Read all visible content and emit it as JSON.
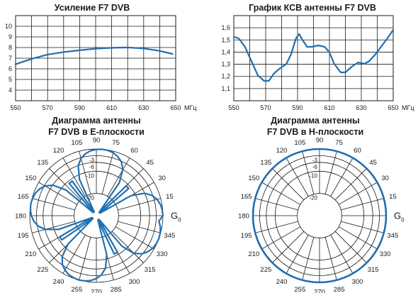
{
  "chart_data": [
    {
      "type": "line",
      "title": "Усиление F7 DVB",
      "x_unit": "МГц",
      "xlim": [
        550,
        650
      ],
      "ylim": [
        3,
        10
      ],
      "x_ticks": [
        "550",
        "570",
        "590",
        "610",
        "630",
        "650"
      ],
      "y_ticks": [
        "4",
        "5",
        "6",
        "7",
        "8",
        "9",
        "10"
      ],
      "grid": true,
      "series": [
        {
          "color": "#1f6fb2",
          "points": [
            [
              550,
              6.0
            ],
            [
              560,
              6.45
            ],
            [
              570,
              6.8
            ],
            [
              580,
              7.0
            ],
            [
              590,
              7.15
            ],
            [
              600,
              7.28
            ],
            [
              610,
              7.35
            ],
            [
              620,
              7.38
            ],
            [
              630,
              7.3
            ],
            [
              640,
              7.1
            ],
            [
              648,
              6.85
            ]
          ]
        }
      ]
    },
    {
      "type": "line",
      "title": "График КСВ антенны F7 DVB",
      "x_unit": "МГц",
      "xlim": [
        550,
        650
      ],
      "ylim": [
        1.0,
        1.6
      ],
      "x_ticks": [
        "550",
        "570",
        "590",
        "610",
        "630",
        "650"
      ],
      "y_ticks": [
        "1,1",
        "1,2",
        "1,3",
        "1,4",
        "1,5",
        "1,6"
      ],
      "grid": true,
      "series": [
        {
          "color": "#1f6fb2",
          "points": [
            [
              550,
              1.45
            ],
            [
              553,
              1.44
            ],
            [
              557,
              1.38
            ],
            [
              561,
              1.28
            ],
            [
              565,
              1.18
            ],
            [
              569,
              1.14
            ],
            [
              572,
              1.14
            ],
            [
              575,
              1.19
            ],
            [
              578,
              1.22
            ],
            [
              583,
              1.26
            ],
            [
              586,
              1.33
            ],
            [
              589,
              1.44
            ],
            [
              591,
              1.47
            ],
            [
              593,
              1.43
            ],
            [
              596,
              1.38
            ],
            [
              599,
              1.38
            ],
            [
              603,
              1.39
            ],
            [
              607,
              1.38
            ],
            [
              610,
              1.34
            ],
            [
              613,
              1.26
            ],
            [
              617,
              1.2
            ],
            [
              620,
              1.2
            ],
            [
              624,
              1.24
            ],
            [
              628,
              1.27
            ],
            [
              632,
              1.26
            ],
            [
              635,
              1.28
            ],
            [
              639,
              1.33
            ],
            [
              643,
              1.39
            ],
            [
              647,
              1.45
            ],
            [
              650,
              1.5
            ]
          ]
        }
      ]
    },
    {
      "type": "polar",
      "title": "Диаграмма антенны F7 DVB в Е-плоскости",
      "angle_labels": [
        "0",
        "15",
        "30",
        "45",
        "60",
        "75",
        "90",
        "105",
        "120",
        "135",
        "150",
        "165",
        "180",
        "195",
        "210",
        "225",
        "240",
        "255",
        "270",
        "285",
        "300",
        "315",
        "330",
        "345"
      ],
      "angle_label_0": "G",
      "angle_label_0_sub": "0",
      "ring_labels": [
        "-3",
        "-6",
        "-10",
        "-20"
      ],
      "ring_levels_db": [
        0,
        -3,
        -6,
        -10,
        -20
      ],
      "series": [
        {
          "color": "#1f6fb2",
          "gain_db": [
            0,
            -0.2,
            -0.7,
            -1.7,
            -3.3,
            -6.1,
            -12,
            -28,
            -11,
            -11,
            -28,
            -12,
            -6.1,
            -3.3,
            -1.7,
            -0.7,
            -0.2,
            0,
            -0.2,
            -0.7,
            -1.7,
            -3.3,
            -6.1,
            -12,
            -28,
            -11,
            -11,
            -28,
            -12,
            -6.1,
            -3.3,
            -1.7,
            -0.7,
            -0.2,
            0,
            -0.2,
            -0.7,
            -1.7,
            -3.3,
            -6.1,
            -12,
            -28,
            -11,
            -11,
            -28,
            -12,
            -6.1,
            -3.3,
            -1.7,
            -0.7,
            -0.2,
            0,
            -0.2,
            -0.7,
            -1.7,
            -3.3,
            -6.1,
            -12,
            -28,
            -11,
            -11,
            -28,
            -12,
            -6.1,
            -3.3,
            -1.7,
            -0.7,
            -0.2,
            0,
            -0.2,
            -0.7,
            -1.7
          ],
          "angle_step_deg": 5
        }
      ]
    },
    {
      "type": "polar",
      "title": "Диаграмма антенны F7 DVB в Н-плоскости",
      "angle_labels": [
        "0",
        "15",
        "30",
        "45",
        "60",
        "75",
        "90",
        "105",
        "120",
        "135",
        "150",
        "165",
        "180",
        "195",
        "210",
        "225",
        "240",
        "255",
        "270",
        "285",
        "300",
        "315",
        "330",
        "345"
      ],
      "angle_label_0": "G",
      "angle_label_0_sub": "0",
      "ring_labels": [
        "-3",
        "-6",
        "-10",
        "-20"
      ],
      "ring_levels_db": [
        0,
        -3,
        -6,
        -10,
        -20
      ],
      "series": [
        {
          "color": "#1f6fb2",
          "gain_db": [
            0
          ],
          "omnidirectional": true
        }
      ]
    }
  ],
  "titles": {
    "gain_title": "Усиление F7 DVB",
    "vswr_title": "График КСВ антенны F7 DVB",
    "e_title_line1": "Диаграмма антенны",
    "e_title_line2": "F7 DVB в Е-плоскости",
    "h_title_line1": "Диаграмма антенны",
    "h_title_line2": "F7 DVB в Н-плоскости"
  }
}
